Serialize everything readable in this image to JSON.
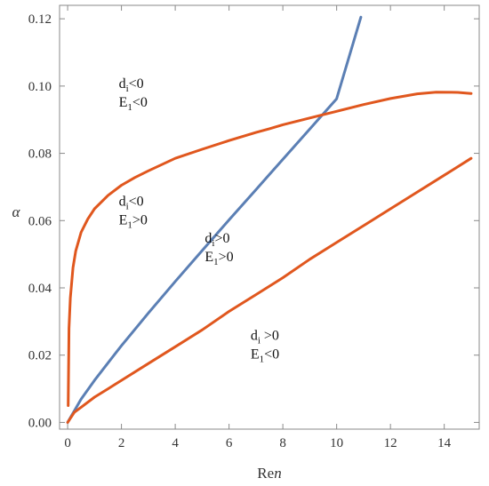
{
  "chart_data": {
    "type": "line",
    "xlabel": "Re",
    "xlabel_sub": "n",
    "ylabel": "α",
    "xlim": [
      -0.3,
      15.3
    ],
    "ylim": [
      -0.002,
      0.124
    ],
    "x_ticks": [
      0,
      2,
      4,
      6,
      8,
      10,
      12,
      14
    ],
    "x_tick_labels": [
      "0",
      "2",
      "4",
      "6",
      "8",
      "10",
      "12",
      "14"
    ],
    "y_ticks": [
      0.0,
      0.02,
      0.04,
      0.06,
      0.08,
      0.1,
      0.12
    ],
    "y_tick_labels": [
      "0.00",
      "0.02",
      "0.04",
      "0.06",
      "0.08",
      "0.10",
      "0.12"
    ],
    "grid": false,
    "series": [
      {
        "color": "#5b7fb4",
        "x": [
          0,
          0.5,
          1,
          1.5,
          2,
          3,
          4,
          5,
          6,
          7,
          7.5,
          8,
          9,
          10,
          10.9
        ],
        "y": [
          0.0,
          0.0069,
          0.0125,
          0.0177,
          0.0228,
          0.0325,
          0.0419,
          0.0511,
          0.0602,
          0.0692,
          0.0737,
          0.0782,
          0.0872,
          0.0962,
          0.1205
        ]
      },
      {
        "color": "#e0571e",
        "x": [
          0.02,
          0.05,
          0.1,
          0.2,
          0.3,
          0.5,
          0.75,
          1,
          1.5,
          2,
          2.5,
          3,
          4,
          5,
          6,
          7,
          7.5,
          8,
          9,
          10,
          11,
          12,
          13,
          13.7,
          14.5,
          15
        ],
        "y": [
          0.005,
          0.028,
          0.037,
          0.046,
          0.051,
          0.0565,
          0.0605,
          0.0635,
          0.0675,
          0.0705,
          0.0728,
          0.0748,
          0.0785,
          0.0812,
          0.0838,
          0.0862,
          0.0873,
          0.0885,
          0.0905,
          0.0925,
          0.0945,
          0.0963,
          0.0977,
          0.0982,
          0.0981,
          0.0978
        ]
      },
      {
        "color": "#e0571e",
        "x": [
          0,
          0.25,
          0.5,
          1,
          1.5,
          2,
          3,
          4,
          5,
          6,
          7,
          8,
          9,
          10,
          11,
          12,
          13,
          14,
          15
        ],
        "y": [
          0.0,
          0.003,
          0.0045,
          0.0075,
          0.01,
          0.0125,
          0.0175,
          0.0225,
          0.0275,
          0.033,
          0.038,
          0.043,
          0.0485,
          0.0535,
          0.0585,
          0.0635,
          0.0685,
          0.0735,
          0.0785
        ]
      }
    ],
    "annotations": [
      {
        "x": 1.9,
        "y": 0.0995,
        "lines": [
          {
            "main": "d",
            "sub": "i",
            "rest": "<0"
          },
          {
            "main": "E",
            "sub": "1",
            "rest": "<0"
          }
        ]
      },
      {
        "x": 1.9,
        "y": 0.0645,
        "lines": [
          {
            "main": "d",
            "sub": "i",
            "rest": "<0"
          },
          {
            "main": "E",
            "sub": "1",
            "rest": ">0"
          }
        ]
      },
      {
        "x": 5.1,
        "y": 0.0535,
        "lines": [
          {
            "main": "d",
            "sub": "i",
            "rest": ">0"
          },
          {
            "main": "E",
            "sub": "1",
            "rest": ">0"
          }
        ]
      },
      {
        "x": 6.8,
        "y": 0.0245,
        "lines": [
          {
            "main": "d",
            "sub": "i",
            "rest": " >0"
          },
          {
            "main": "E",
            "sub": "1",
            "rest": "<0"
          }
        ]
      }
    ]
  }
}
